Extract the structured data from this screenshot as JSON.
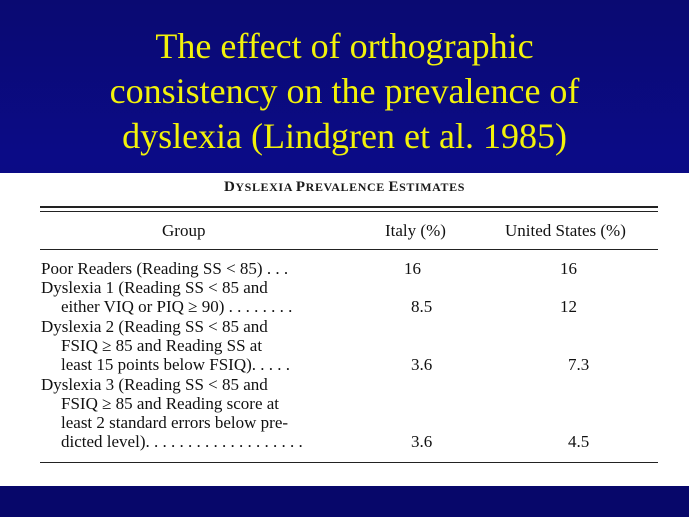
{
  "slide": {
    "title_lines": [
      "The effect of orthographic",
      "consistency on the prevalence of",
      "dyslexia (Lindgren et al. 1985)"
    ]
  },
  "table": {
    "caption_parts": [
      "D",
      "YSLEXIA ",
      "P",
      "REVALENCE ",
      "E",
      "STIMATES"
    ],
    "headers": {
      "group": "Group",
      "italy": "Italy (%)",
      "us": "United States (%)"
    },
    "rows": [
      {
        "lines": [
          "Poor Readers (Reading SS < 85) . . ."
        ],
        "italy": "16",
        "us": "16"
      },
      {
        "lines": [
          "Dyslexia 1 (Reading SS < 85 and",
          "either VIQ or PIQ ≥ 90) . . . . . . . ."
        ],
        "italy": "8.5",
        "us": "12"
      },
      {
        "lines": [
          "Dyslexia 2 (Reading SS < 85 and",
          "FSIQ ≥ 85 and Reading SS at",
          "least 15 points below FSIQ). . . . ."
        ],
        "italy": "3.6",
        "us": "7.3"
      },
      {
        "lines": [
          "Dyslexia 3 (Reading SS < 85 and",
          "FSIQ ≥ 85 and Reading score at",
          "least 2 standard errors below pre-",
          "dicted level). . . . . . . . . . . . . . . . . . ."
        ],
        "italy": "3.6",
        "us": "4.5"
      }
    ]
  }
}
